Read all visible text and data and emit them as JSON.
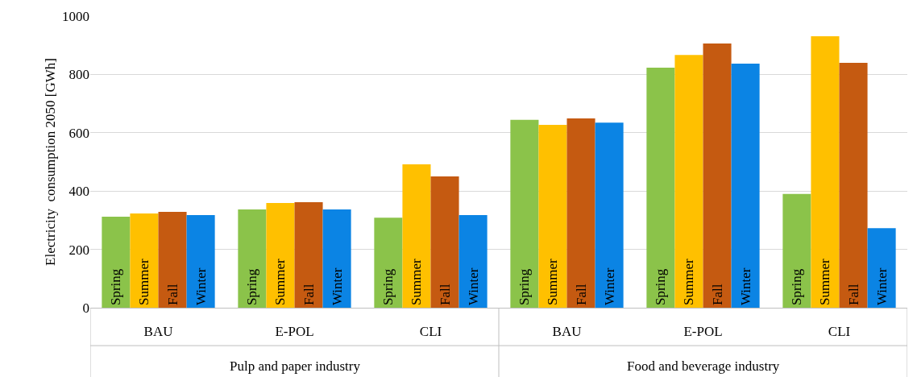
{
  "chart_data": {
    "type": "bar",
    "ylabel": "Electricity  consumption 2050 [GWh]",
    "categories": [
      "BAU",
      "E-POL",
      "CLI",
      "BAU",
      "E-POL",
      "CLI"
    ],
    "series": [
      {
        "name": "Spring",
        "color": "#8bc34a",
        "values": [
          312,
          337,
          309,
          644,
          823,
          390
        ]
      },
      {
        "name": "Summer",
        "color": "#ffc000",
        "values": [
          323,
          359,
          492,
          627,
          867,
          931
        ]
      },
      {
        "name": "Fall",
        "color": "#c55a11",
        "values": [
          329,
          362,
          450,
          649,
          906,
          840
        ]
      },
      {
        "name": "Winter",
        "color": "#0b84e4",
        "values": [
          318,
          337,
          318,
          635,
          837,
          273
        ]
      }
    ],
    "ylim": [
      0,
      1000
    ],
    "yticks": [
      0,
      200,
      400,
      600,
      800,
      1000
    ],
    "grid": "y",
    "legend": false,
    "annotations": [
      "Pulp and paper industry",
      "Food and beverage industry"
    ]
  }
}
